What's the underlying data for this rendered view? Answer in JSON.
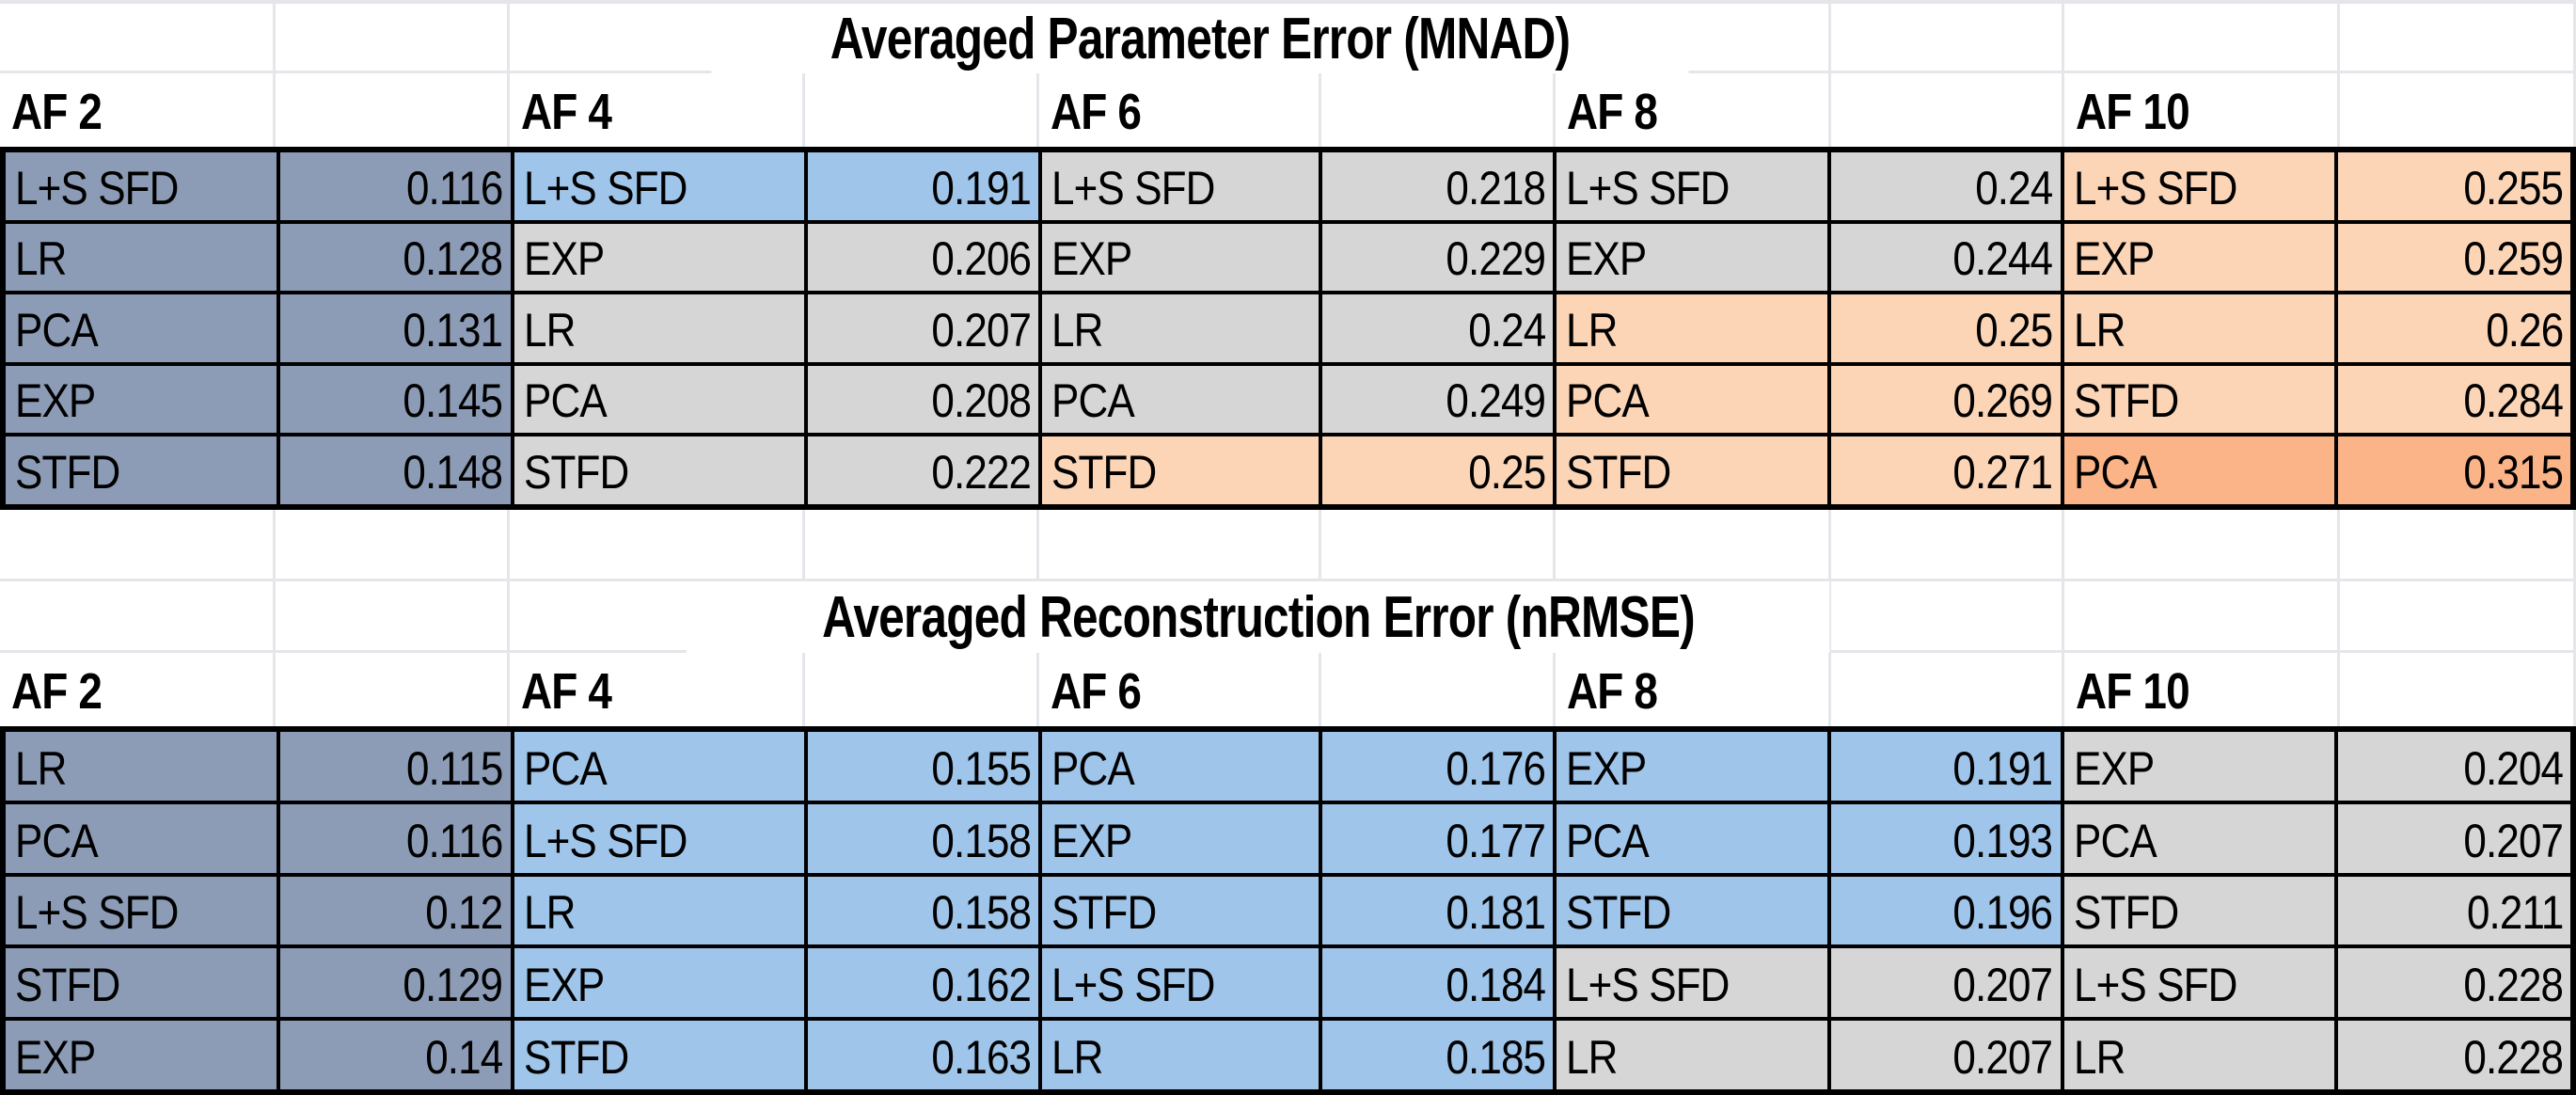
{
  "palette": {
    "slate": "#8C9CB6",
    "blue": "#9FC5EA",
    "gray": "#D6D6D6",
    "peach": "#FCD5B6",
    "orange": "#FBB488",
    "gridline": "#E4E6EA",
    "border": "#000000"
  },
  "tables": [
    {
      "title": "Averaged Parameter Error (MNAD)",
      "columns": [
        {
          "header": "AF 2",
          "rows": [
            {
              "method": "L+S SFD",
              "value": "0.116",
              "color": "slate"
            },
            {
              "method": "LR",
              "value": "0.128",
              "color": "slate"
            },
            {
              "method": "PCA",
              "value": "0.131",
              "color": "slate"
            },
            {
              "method": "EXP",
              "value": "0.145",
              "color": "slate"
            },
            {
              "method": "STFD",
              "value": "0.148",
              "color": "slate"
            }
          ]
        },
        {
          "header": "AF 4",
          "rows": [
            {
              "method": "L+S SFD",
              "value": "0.191",
              "color": "blue"
            },
            {
              "method": "EXP",
              "value": "0.206",
              "color": "gray"
            },
            {
              "method": "LR",
              "value": "0.207",
              "color": "gray"
            },
            {
              "method": "PCA",
              "value": "0.208",
              "color": "gray"
            },
            {
              "method": "STFD",
              "value": "0.222",
              "color": "gray"
            }
          ]
        },
        {
          "header": "AF 6",
          "rows": [
            {
              "method": "L+S SFD",
              "value": "0.218",
              "color": "gray"
            },
            {
              "method": "EXP",
              "value": "0.229",
              "color": "gray"
            },
            {
              "method": "LR",
              "value": "0.24",
              "color": "gray"
            },
            {
              "method": "PCA",
              "value": "0.249",
              "color": "gray"
            },
            {
              "method": "STFD",
              "value": "0.25",
              "color": "peach"
            }
          ]
        },
        {
          "header": "AF 8",
          "rows": [
            {
              "method": "L+S SFD",
              "value": "0.24",
              "color": "gray"
            },
            {
              "method": "EXP",
              "value": "0.244",
              "color": "gray"
            },
            {
              "method": "LR",
              "value": "0.25",
              "color": "peach"
            },
            {
              "method": "PCA",
              "value": "0.269",
              "color": "peach"
            },
            {
              "method": "STFD",
              "value": "0.271",
              "color": "peach"
            }
          ]
        },
        {
          "header": "AF 10",
          "rows": [
            {
              "method": "L+S SFD",
              "value": "0.255",
              "color": "peach"
            },
            {
              "method": "EXP",
              "value": "0.259",
              "color": "peach"
            },
            {
              "method": "LR",
              "value": "0.26",
              "color": "peach"
            },
            {
              "method": "STFD",
              "value": "0.284",
              "color": "peach"
            },
            {
              "method": "PCA",
              "value": "0.315",
              "color": "orange"
            }
          ]
        }
      ]
    },
    {
      "title": "Averaged Reconstruction Error (nRMSE)",
      "columns": [
        {
          "header": "AF 2",
          "rows": [
            {
              "method": "LR",
              "value": "0.115",
              "color": "slate"
            },
            {
              "method": "PCA",
              "value": "0.116",
              "color": "slate"
            },
            {
              "method": "L+S SFD",
              "value": "0.12",
              "color": "slate"
            },
            {
              "method": "STFD",
              "value": "0.129",
              "color": "slate"
            },
            {
              "method": "EXP",
              "value": "0.14",
              "color": "slate"
            }
          ]
        },
        {
          "header": "AF 4",
          "rows": [
            {
              "method": "PCA",
              "value": "0.155",
              "color": "blue"
            },
            {
              "method": "L+S SFD",
              "value": "0.158",
              "color": "blue"
            },
            {
              "method": "LR",
              "value": "0.158",
              "color": "blue"
            },
            {
              "method": "EXP",
              "value": "0.162",
              "color": "blue"
            },
            {
              "method": "STFD",
              "value": "0.163",
              "color": "blue"
            }
          ]
        },
        {
          "header": "AF 6",
          "rows": [
            {
              "method": "PCA",
              "value": "0.176",
              "color": "blue"
            },
            {
              "method": "EXP",
              "value": "0.177",
              "color": "blue"
            },
            {
              "method": "STFD",
              "value": "0.181",
              "color": "blue"
            },
            {
              "method": "L+S SFD",
              "value": "0.184",
              "color": "blue"
            },
            {
              "method": "LR",
              "value": "0.185",
              "color": "blue"
            }
          ]
        },
        {
          "header": "AF 8",
          "rows": [
            {
              "method": "EXP",
              "value": "0.191",
              "color": "blue"
            },
            {
              "method": "PCA",
              "value": "0.193",
              "color": "blue"
            },
            {
              "method": "STFD",
              "value": "0.196",
              "color": "blue"
            },
            {
              "method": "L+S SFD",
              "value": "0.207",
              "color": "gray"
            },
            {
              "method": "LR",
              "value": "0.207",
              "color": "gray"
            }
          ]
        },
        {
          "header": "AF 10",
          "rows": [
            {
              "method": "EXP",
              "value": "0.204",
              "color": "gray"
            },
            {
              "method": "PCA",
              "value": "0.207",
              "color": "gray"
            },
            {
              "method": "STFD",
              "value": "0.211",
              "color": "gray"
            },
            {
              "method": "L+S SFD",
              "value": "0.228",
              "color": "gray"
            },
            {
              "method": "LR",
              "value": "0.228",
              "color": "gray"
            }
          ]
        }
      ]
    }
  ]
}
